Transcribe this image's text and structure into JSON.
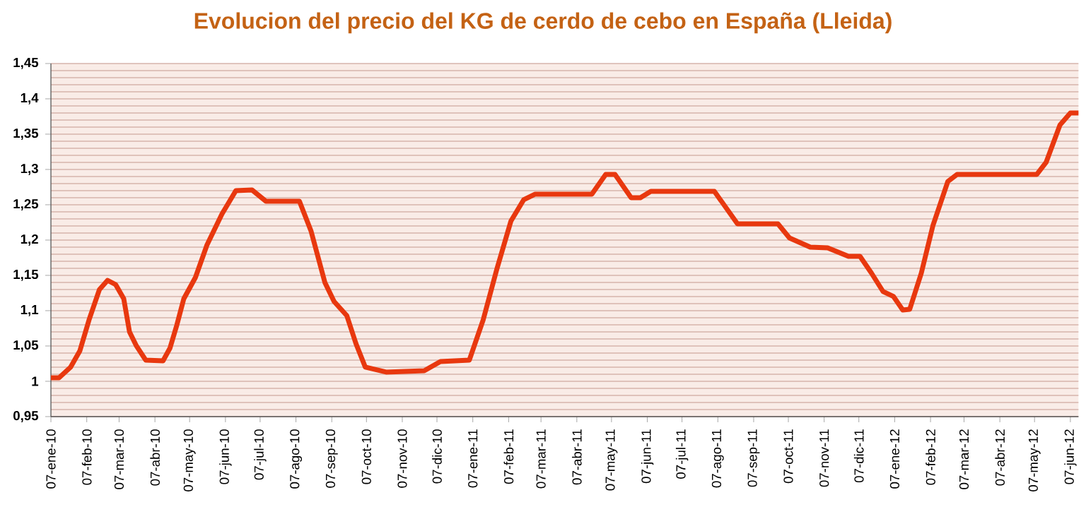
{
  "chart_data": {
    "type": "line",
    "title": "Evolucion del precio del KG de cerdo de cebo en España (Lleida)",
    "x": [
      "2010-01-07",
      "2010-01-14",
      "2010-01-24",
      "2010-02-01",
      "2010-02-09",
      "2010-02-18",
      "2010-02-25",
      "2010-03-04",
      "2010-03-11",
      "2010-03-16",
      "2010-03-22",
      "2010-03-30",
      "2010-04-14",
      "2010-04-20",
      "2010-04-26",
      "2010-05-02",
      "2010-05-12",
      "2010-05-22",
      "2010-06-04",
      "2010-06-16",
      "2010-06-30",
      "2010-07-12",
      "2010-08-10",
      "2010-08-20",
      "2010-09-01",
      "2010-09-09",
      "2010-09-20",
      "2010-09-28",
      "2010-10-06",
      "2010-10-24",
      "2010-11-26",
      "2010-12-10",
      "2011-01-04",
      "2011-01-16",
      "2011-01-28",
      "2011-02-09",
      "2011-02-20",
      "2011-03-02",
      "2011-04-20",
      "2011-05-02",
      "2011-05-10",
      "2011-05-24",
      "2011-06-01",
      "2011-06-10",
      "2011-08-04",
      "2011-08-24",
      "2011-09-28",
      "2011-10-08",
      "2011-10-26",
      "2011-11-10",
      "2011-11-28",
      "2011-12-08",
      "2011-12-18",
      "2011-12-28",
      "2012-01-06",
      "2012-01-14",
      "2012-01-20",
      "2012-01-30",
      "2012-02-09",
      "2012-02-22",
      "2012-03-01",
      "2012-05-09",
      "2012-05-17",
      "2012-05-29",
      "2012-06-07",
      "2012-06-14"
    ],
    "values": [
      1.005,
      1.005,
      1.02,
      1.043,
      1.087,
      1.13,
      1.143,
      1.137,
      1.117,
      1.07,
      1.05,
      1.03,
      1.029,
      1.047,
      1.08,
      1.117,
      1.147,
      1.193,
      1.237,
      1.27,
      1.271,
      1.255,
      1.255,
      1.213,
      1.14,
      1.113,
      1.093,
      1.053,
      1.02,
      1.013,
      1.015,
      1.028,
      1.03,
      1.087,
      1.16,
      1.227,
      1.257,
      1.265,
      1.265,
      1.293,
      1.293,
      1.26,
      1.26,
      1.269,
      1.269,
      1.223,
      1.223,
      1.203,
      1.19,
      1.189,
      1.177,
      1.177,
      1.153,
      1.127,
      1.12,
      1.101,
      1.102,
      1.153,
      1.22,
      1.283,
      1.293,
      1.293,
      1.31,
      1.363,
      1.38,
      1.38
    ],
    "color": "#e8380f",
    "xlim": [
      "2010-01-07",
      "2012-06-14"
    ],
    "xticks": [
      {
        "value": "2010-01-07",
        "label": "07-ene-10"
      },
      {
        "value": "2010-02-07",
        "label": "07-feb-10"
      },
      {
        "value": "2010-03-07",
        "label": "07-mar-10"
      },
      {
        "value": "2010-04-07",
        "label": "07-abr-10"
      },
      {
        "value": "2010-05-07",
        "label": "07-may-10"
      },
      {
        "value": "2010-06-07",
        "label": "07-jun-10"
      },
      {
        "value": "2010-07-07",
        "label": "07-jul-10"
      },
      {
        "value": "2010-08-07",
        "label": "07-ago-10"
      },
      {
        "value": "2010-09-07",
        "label": "07-sep-10"
      },
      {
        "value": "2010-10-07",
        "label": "07-oct-10"
      },
      {
        "value": "2010-11-07",
        "label": "07-nov-10"
      },
      {
        "value": "2010-12-07",
        "label": "07-dic-10"
      },
      {
        "value": "2011-01-07",
        "label": "07-ene-11"
      },
      {
        "value": "2011-02-07",
        "label": "07-feb-11"
      },
      {
        "value": "2011-03-07",
        "label": "07-mar-11"
      },
      {
        "value": "2011-04-07",
        "label": "07-abr-11"
      },
      {
        "value": "2011-05-07",
        "label": "07-may-11"
      },
      {
        "value": "2011-06-07",
        "label": "07-jun-11"
      },
      {
        "value": "2011-07-07",
        "label": "07-jul-11"
      },
      {
        "value": "2011-08-07",
        "label": "07-ago-11"
      },
      {
        "value": "2011-09-07",
        "label": "07-sep-11"
      },
      {
        "value": "2011-10-07",
        "label": "07-oct-11"
      },
      {
        "value": "2011-11-07",
        "label": "07-nov-11"
      },
      {
        "value": "2011-12-07",
        "label": "07-dic-11"
      },
      {
        "value": "2012-01-07",
        "label": "07-ene-12"
      },
      {
        "value": "2012-02-07",
        "label": "07-feb-12"
      },
      {
        "value": "2012-03-07",
        "label": "07-mar-12"
      },
      {
        "value": "2012-04-07",
        "label": "07-abr-12"
      },
      {
        "value": "2012-05-07",
        "label": "07-may-12"
      },
      {
        "value": "2012-06-07",
        "label": "07-jun-12"
      }
    ],
    "ylim": [
      0.95,
      1.45
    ],
    "yticks": [
      {
        "value": 0.95,
        "label": "0,95"
      },
      {
        "value": 1,
        "label": "1"
      },
      {
        "value": 1.05,
        "label": "1,05"
      },
      {
        "value": 1.1,
        "label": "1,1"
      },
      {
        "value": 1.15,
        "label": "1,15"
      },
      {
        "value": 1.2,
        "label": "1,2"
      },
      {
        "value": 1.25,
        "label": "1,25"
      },
      {
        "value": 1.3,
        "label": "1,3"
      },
      {
        "value": 1.35,
        "label": "1,35"
      },
      {
        "value": 1.4,
        "label": "1,4"
      },
      {
        "value": 1.45,
        "label": "1,45"
      }
    ],
    "grid": true
  }
}
